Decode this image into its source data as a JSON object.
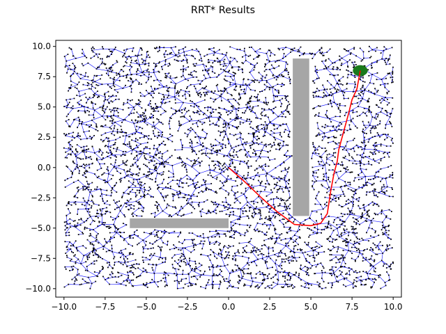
{
  "chart_data": {
    "type": "scatter",
    "title": "RRT* Results",
    "xlabel": "",
    "ylabel": "",
    "xlim": [
      -10.5,
      10.5
    ],
    "ylim": [
      -10.7,
      10.5
    ],
    "x_ticks": [
      -10.0,
      -7.5,
      -5.0,
      -2.5,
      0.0,
      2.5,
      5.0,
      7.5,
      10.0
    ],
    "y_ticks": [
      -10.0,
      -7.5,
      -5.0,
      -2.5,
      0.0,
      2.5,
      5.0,
      7.5,
      10.0
    ],
    "x_tick_labels": [
      "−10.0",
      "−7.5",
      "−5.0",
      "−2.5",
      "0.0",
      "2.5",
      "5.0",
      "7.5",
      "10.0"
    ],
    "y_tick_labels": [
      "−10.0",
      "−7.5",
      "−5.0",
      "−2.5",
      "0.0",
      "2.5",
      "5.0",
      "7.5",
      "10.0"
    ],
    "grid": false,
    "legend": "none",
    "start": [
      0.0,
      0.0
    ],
    "goal": {
      "center": [
        8.0,
        8.0
      ],
      "radius": 0.45
    },
    "obstacles": [
      {
        "x": [
          3.9,
          4.9
        ],
        "y": [
          -4.0,
          9.0
        ]
      },
      {
        "x": [
          -6.0,
          0.0
        ],
        "y": [
          -5.0,
          -4.2
        ]
      }
    ],
    "bounds": {
      "x": [
        -10.0,
        10.0
      ],
      "y": [
        -10.0,
        10.0
      ]
    },
    "tree_node_count": 4500,
    "path": {
      "x": [
        0.0,
        1.0,
        2.0,
        3.0,
        4.0,
        5.0,
        5.6,
        6.0,
        6.2,
        6.4,
        6.6,
        6.7,
        7.0,
        7.3,
        7.5,
        7.8,
        8.0
      ],
      "y": [
        0.0,
        -1.2,
        -2.5,
        -3.7,
        -4.7,
        -4.8,
        -4.6,
        -3.8,
        -2.0,
        -0.5,
        0.5,
        1.5,
        3.0,
        4.5,
        5.6,
        6.5,
        8.0
      ]
    },
    "colors": {
      "tree_edge": "#0000ff",
      "tree_node": "#000000",
      "path": "#ff0000",
      "obstacle": "#a6a6a6",
      "goal": "#1a7a1a"
    }
  }
}
